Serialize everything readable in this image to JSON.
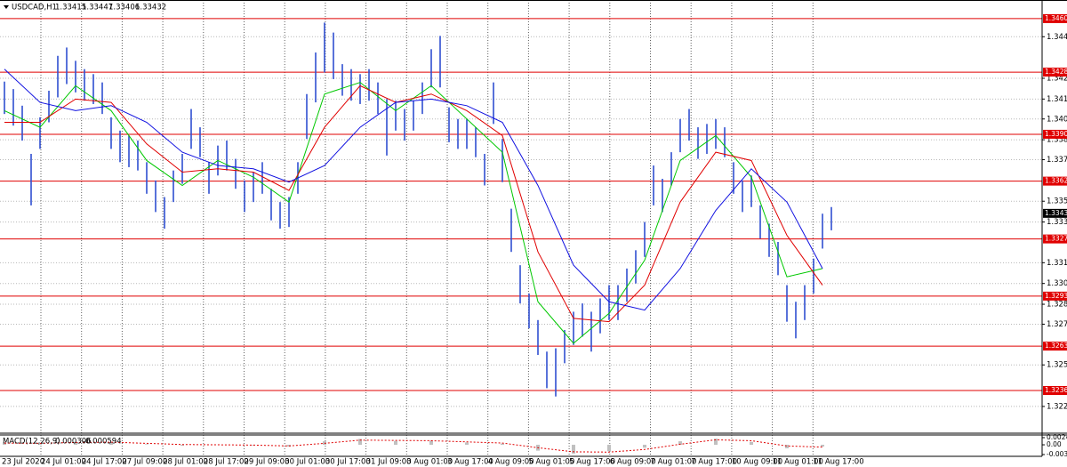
{
  "chart_data": {
    "type": "ohlc",
    "title": "USDCAD,H1",
    "quote": [
      1.33415,
      1.33447,
      1.33406,
      1.33432
    ],
    "color": "#2f4fd0",
    "grid": true,
    "ylim": [
      1.32109,
      1.34716
    ],
    "yticks": [
      1.34495,
      1.34245,
      {
        "value": 1.3412,
        "label": "1.34120"
      },
      {
        "value": 1.34,
        "label": "1.34000"
      },
      1.33875,
      1.33755,
      1.33505,
      {
        "value": 1.3338,
        "label": "1.33380"
      },
      1.33135,
      {
        "value": 1.3301,
        "label": "1.33010"
      },
      1.32885,
      1.32765,
      {
        "value": 1.3252,
        "label": "1.32520"
      },
      {
        "value": 1.3227,
        "label": "1.32270"
      }
    ],
    "levels": [
      1.34604,
      1.34282,
      1.33908,
      1.33626,
      1.33278,
      1.32934,
      1.32633,
      1.32366
    ],
    "level_color": "#e00000",
    "last_price": 1.33432,
    "xtick_labels": [
      "23 Jul 2020",
      "24 Jul 01:00",
      "24 Jul 17:00",
      "27 Jul 09:00",
      "28 Jul 01:00",
      "28 Jul 17:00",
      "29 Jul 09:00",
      "30 Jul 01:00",
      "30 Jul 17:00",
      "31 Jul 09:00",
      "3 Aug 01:00",
      "3 Aug 17:00",
      "4 Aug 09:00",
      "5 Aug 01:00",
      "5 Aug 17:00",
      "6 Aug 09:00",
      "7 Aug 01:00",
      "7 Aug 17:00",
      "10 Aug 09:00",
      "11 Aug 01:00",
      "11 Aug 17:00"
    ],
    "high": [
      1.34225,
      1.3418,
      1.3408,
      1.3379,
      1.3401,
      1.3417,
      1.3438,
      1.3443,
      1.3435,
      1.343,
      1.3427,
      1.3422,
      1.3401,
      1.3393,
      1.339,
      1.3387,
      1.3374,
      1.3363,
      1.3353,
      1.3369,
      1.3379,
      1.3406,
      1.3395,
      1.3374,
      1.3384,
      1.3387,
      1.3376,
      1.3363,
      1.3368,
      1.3374,
      1.3358,
      1.335,
      1.3353,
      1.3374,
      1.3415,
      1.344,
      1.3458,
      1.3452,
      1.3433,
      1.343,
      1.3427,
      1.343,
      1.3422,
      1.3412,
      1.3411,
      1.3406,
      1.3411,
      1.3422,
      1.3442,
      1.345,
      1.3407,
      1.34,
      1.34,
      1.3395,
      1.3379,
      1.3422,
      1.3388,
      1.3346,
      1.3312,
      1.3295,
      1.3279,
      1.326,
      1.3262,
      1.3273,
      1.3284,
      1.3289,
      1.3284,
      1.3292,
      1.33,
      1.33,
      1.331,
      1.3321,
      1.3338,
      1.3372,
      1.3364,
      1.338,
      1.34,
      1.3406,
      1.3395,
      1.3397,
      1.34,
      1.3395,
      1.3374,
      1.3363,
      1.3366,
      1.3348,
      1.3337,
      1.3326,
      1.33,
      1.329,
      1.33,
      1.3316,
      1.3343,
      1.3347
    ],
    "low": [
      1.3403,
      1.3396,
      1.3387,
      1.3348,
      1.3382,
      1.3398,
      1.3413,
      1.3421,
      1.3416,
      1.3411,
      1.3409,
      1.3403,
      1.3382,
      1.3374,
      1.3371,
      1.3369,
      1.3355,
      1.3344,
      1.3334,
      1.335,
      1.3361,
      1.3382,
      1.3377,
      1.3355,
      1.3366,
      1.3369,
      1.3358,
      1.3344,
      1.335,
      1.3355,
      1.3339,
      1.3334,
      1.3335,
      1.3355,
      1.3388,
      1.341,
      1.3428,
      1.3424,
      1.3414,
      1.3411,
      1.3409,
      1.3411,
      1.3403,
      1.3378,
      1.3393,
      1.3387,
      1.3393,
      1.3403,
      1.3419,
      1.3419,
      1.3386,
      1.3382,
      1.3382,
      1.3377,
      1.336,
      1.3397,
      1.3362,
      1.332,
      1.3289,
      1.3274,
      1.3258,
      1.3238,
      1.3233,
      1.3253,
      1.3264,
      1.3269,
      1.326,
      1.3271,
      1.3279,
      1.3279,
      1.329,
      1.3301,
      1.3317,
      1.3348,
      1.3344,
      1.336,
      1.338,
      1.3387,
      1.3376,
      1.3379,
      1.3382,
      1.3377,
      1.3355,
      1.3344,
      1.3347,
      1.3328,
      1.3317,
      1.3306,
      1.3278,
      1.3268,
      1.3279,
      1.3295,
      1.3322,
      1.3333
    ],
    "ma": [
      {
        "color": "#00c800",
        "x": [
          0,
          4,
          8,
          12,
          16,
          20,
          24,
          28,
          32,
          36,
          40,
          44,
          48,
          52,
          56,
          60,
          64,
          68,
          72,
          76,
          80,
          84,
          88,
          92
        ],
        "values": [
          1.3405,
          1.3395,
          1.342,
          1.3405,
          1.3375,
          1.336,
          1.3375,
          1.3365,
          1.335,
          1.3415,
          1.3422,
          1.3405,
          1.342,
          1.34,
          1.338,
          1.329,
          1.3265,
          1.3283,
          1.3315,
          1.3375,
          1.339,
          1.3365,
          1.3305,
          1.331
        ]
      },
      {
        "color": "#e00000",
        "x": [
          0,
          4,
          8,
          12,
          16,
          20,
          24,
          28,
          32,
          36,
          40,
          44,
          48,
          52,
          56,
          60,
          64,
          68,
          72,
          76,
          80,
          84,
          88,
          92
        ],
        "values": [
          1.3398,
          1.3398,
          1.3412,
          1.341,
          1.3385,
          1.3368,
          1.337,
          1.3368,
          1.3357,
          1.3395,
          1.342,
          1.341,
          1.3415,
          1.3405,
          1.339,
          1.332,
          1.328,
          1.3278,
          1.33,
          1.335,
          1.338,
          1.3375,
          1.333,
          1.33
        ]
      },
      {
        "color": "#1010e0",
        "x": [
          0,
          4,
          8,
          12,
          16,
          20,
          24,
          28,
          32,
          36,
          40,
          44,
          48,
          52,
          56,
          60,
          64,
          68,
          72,
          76,
          80,
          84,
          88,
          92
        ],
        "values": [
          1.343,
          1.341,
          1.3405,
          1.3408,
          1.3398,
          1.338,
          1.3372,
          1.337,
          1.3362,
          1.3372,
          1.3395,
          1.341,
          1.3412,
          1.3408,
          1.3398,
          1.336,
          1.3312,
          1.329,
          1.3285,
          1.331,
          1.3345,
          1.337,
          1.335,
          1.331
        ]
      }
    ],
    "macd": {
      "title": "MACD(12,26,9)",
      "readout": [
        0.000306,
        -0.000594
      ],
      "ylim": [
        -0.00334,
        0.00245
      ],
      "yticks": [
        0.00245,
        {
          "value": 0,
          "label": "0.00"
        },
        -0.00334
      ],
      "hist_color": "#c0c0c0",
      "signal_color": "#e00000",
      "x": [
        0,
        4,
        8,
        12,
        16,
        20,
        24,
        28,
        32,
        36,
        40,
        44,
        48,
        52,
        56,
        60,
        64,
        68,
        72,
        76,
        80,
        84,
        88,
        92
      ],
      "values": [
        0.0008,
        0.0003,
        0.001,
        0.0009,
        0.0002,
        -0.0003,
        0,
        -0.0002,
        -0.0006,
        0.0012,
        0.002,
        0.0013,
        0.0014,
        0.0008,
        0.0004,
        -0.002,
        -0.003,
        -0.0022,
        -0.001,
        0.0012,
        0.0021,
        0.001,
        -0.0012,
        -0.0006
      ],
      "signal": [
        0.0006,
        0.0005,
        0.0008,
        0.0009,
        0.0005,
        0.0001,
        0,
        -0.0001,
        -0.0004,
        0.0005,
        0.0016,
        0.0015,
        0.0014,
        0.001,
        0.0006,
        -0.001,
        -0.0024,
        -0.0025,
        -0.0016,
        0.0002,
        0.0017,
        0.0014,
        -0.0004,
        -0.0008
      ]
    }
  }
}
